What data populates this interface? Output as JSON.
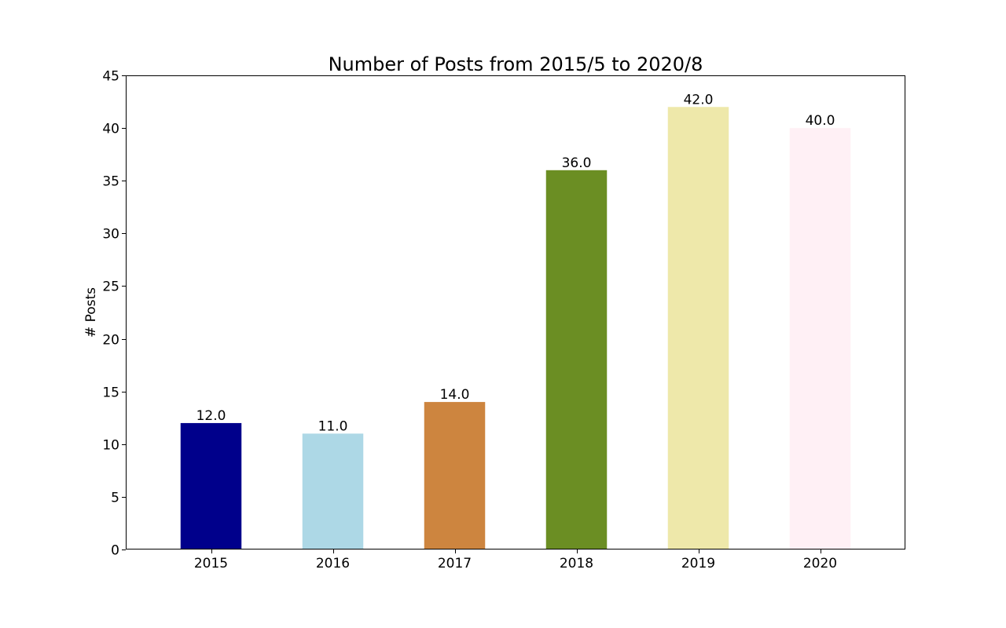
{
  "chart_data": {
    "type": "bar",
    "title": "Number of Posts from 2015/5 to 2020/8",
    "xlabel": "",
    "ylabel": "# Posts",
    "categories": [
      "2015",
      "2016",
      "2017",
      "2018",
      "2019",
      "2020"
    ],
    "values": [
      12,
      11,
      14,
      36,
      42,
      40
    ],
    "value_labels": [
      "12.0",
      "11.0",
      "14.0",
      "36.0",
      "42.0",
      "40.0"
    ],
    "colors": [
      "#00008b",
      "#add8e6",
      "#cd853f",
      "#6b8e23",
      "#eee8aa",
      "#fff0f5"
    ],
    "ylim": [
      0,
      45
    ],
    "yticks": [
      0,
      5,
      10,
      15,
      20,
      25,
      30,
      35,
      40,
      45
    ],
    "ytick_labels": [
      "0",
      "5",
      "10",
      "15",
      "20",
      "25",
      "30",
      "35",
      "40",
      "45"
    ],
    "grid": false,
    "legend": "none"
  }
}
